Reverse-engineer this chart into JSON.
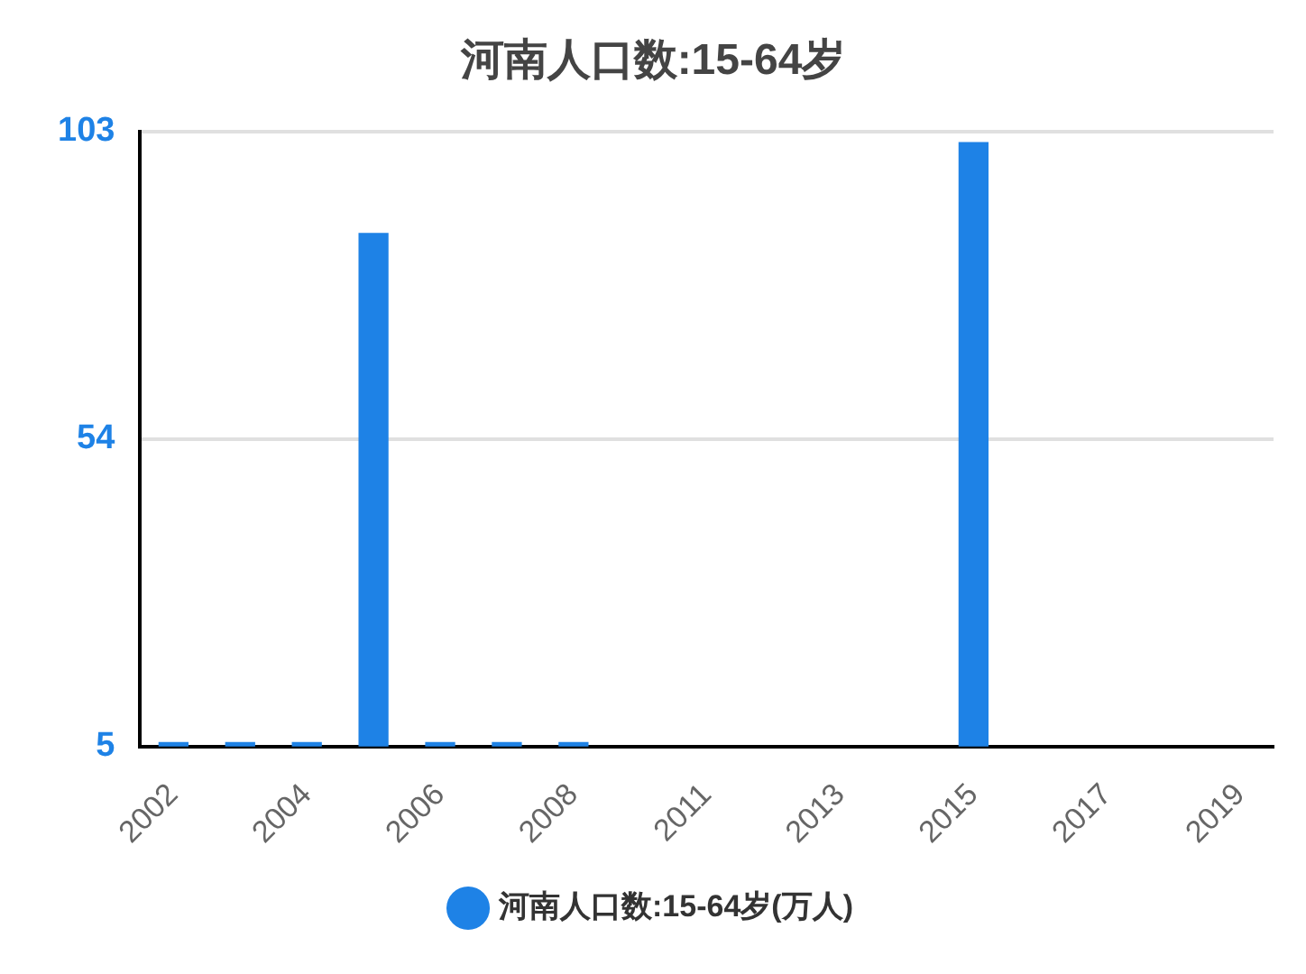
{
  "chart_data": {
    "type": "bar",
    "title": "河南人口数:15-64岁",
    "categories": [
      "2002",
      null,
      "2004",
      null,
      "2006",
      null,
      "2008",
      null,
      "2011",
      null,
      "2013",
      null,
      "2015",
      null,
      "2017",
      null,
      "2019"
    ],
    "series": [
      {
        "name": "河南人口数:15-64岁(万人)",
        "color": "#1e82e6",
        "values": [
          5.7,
          5.7,
          5.7,
          86.8,
          5.7,
          5.7,
          5.7,
          null,
          null,
          null,
          null,
          null,
          101.3,
          null,
          null,
          null,
          null
        ]
      }
    ],
    "ylim": [
      5,
      103
    ],
    "yticks": [
      5,
      54,
      103
    ],
    "grid": "y",
    "legend": "bottom"
  }
}
